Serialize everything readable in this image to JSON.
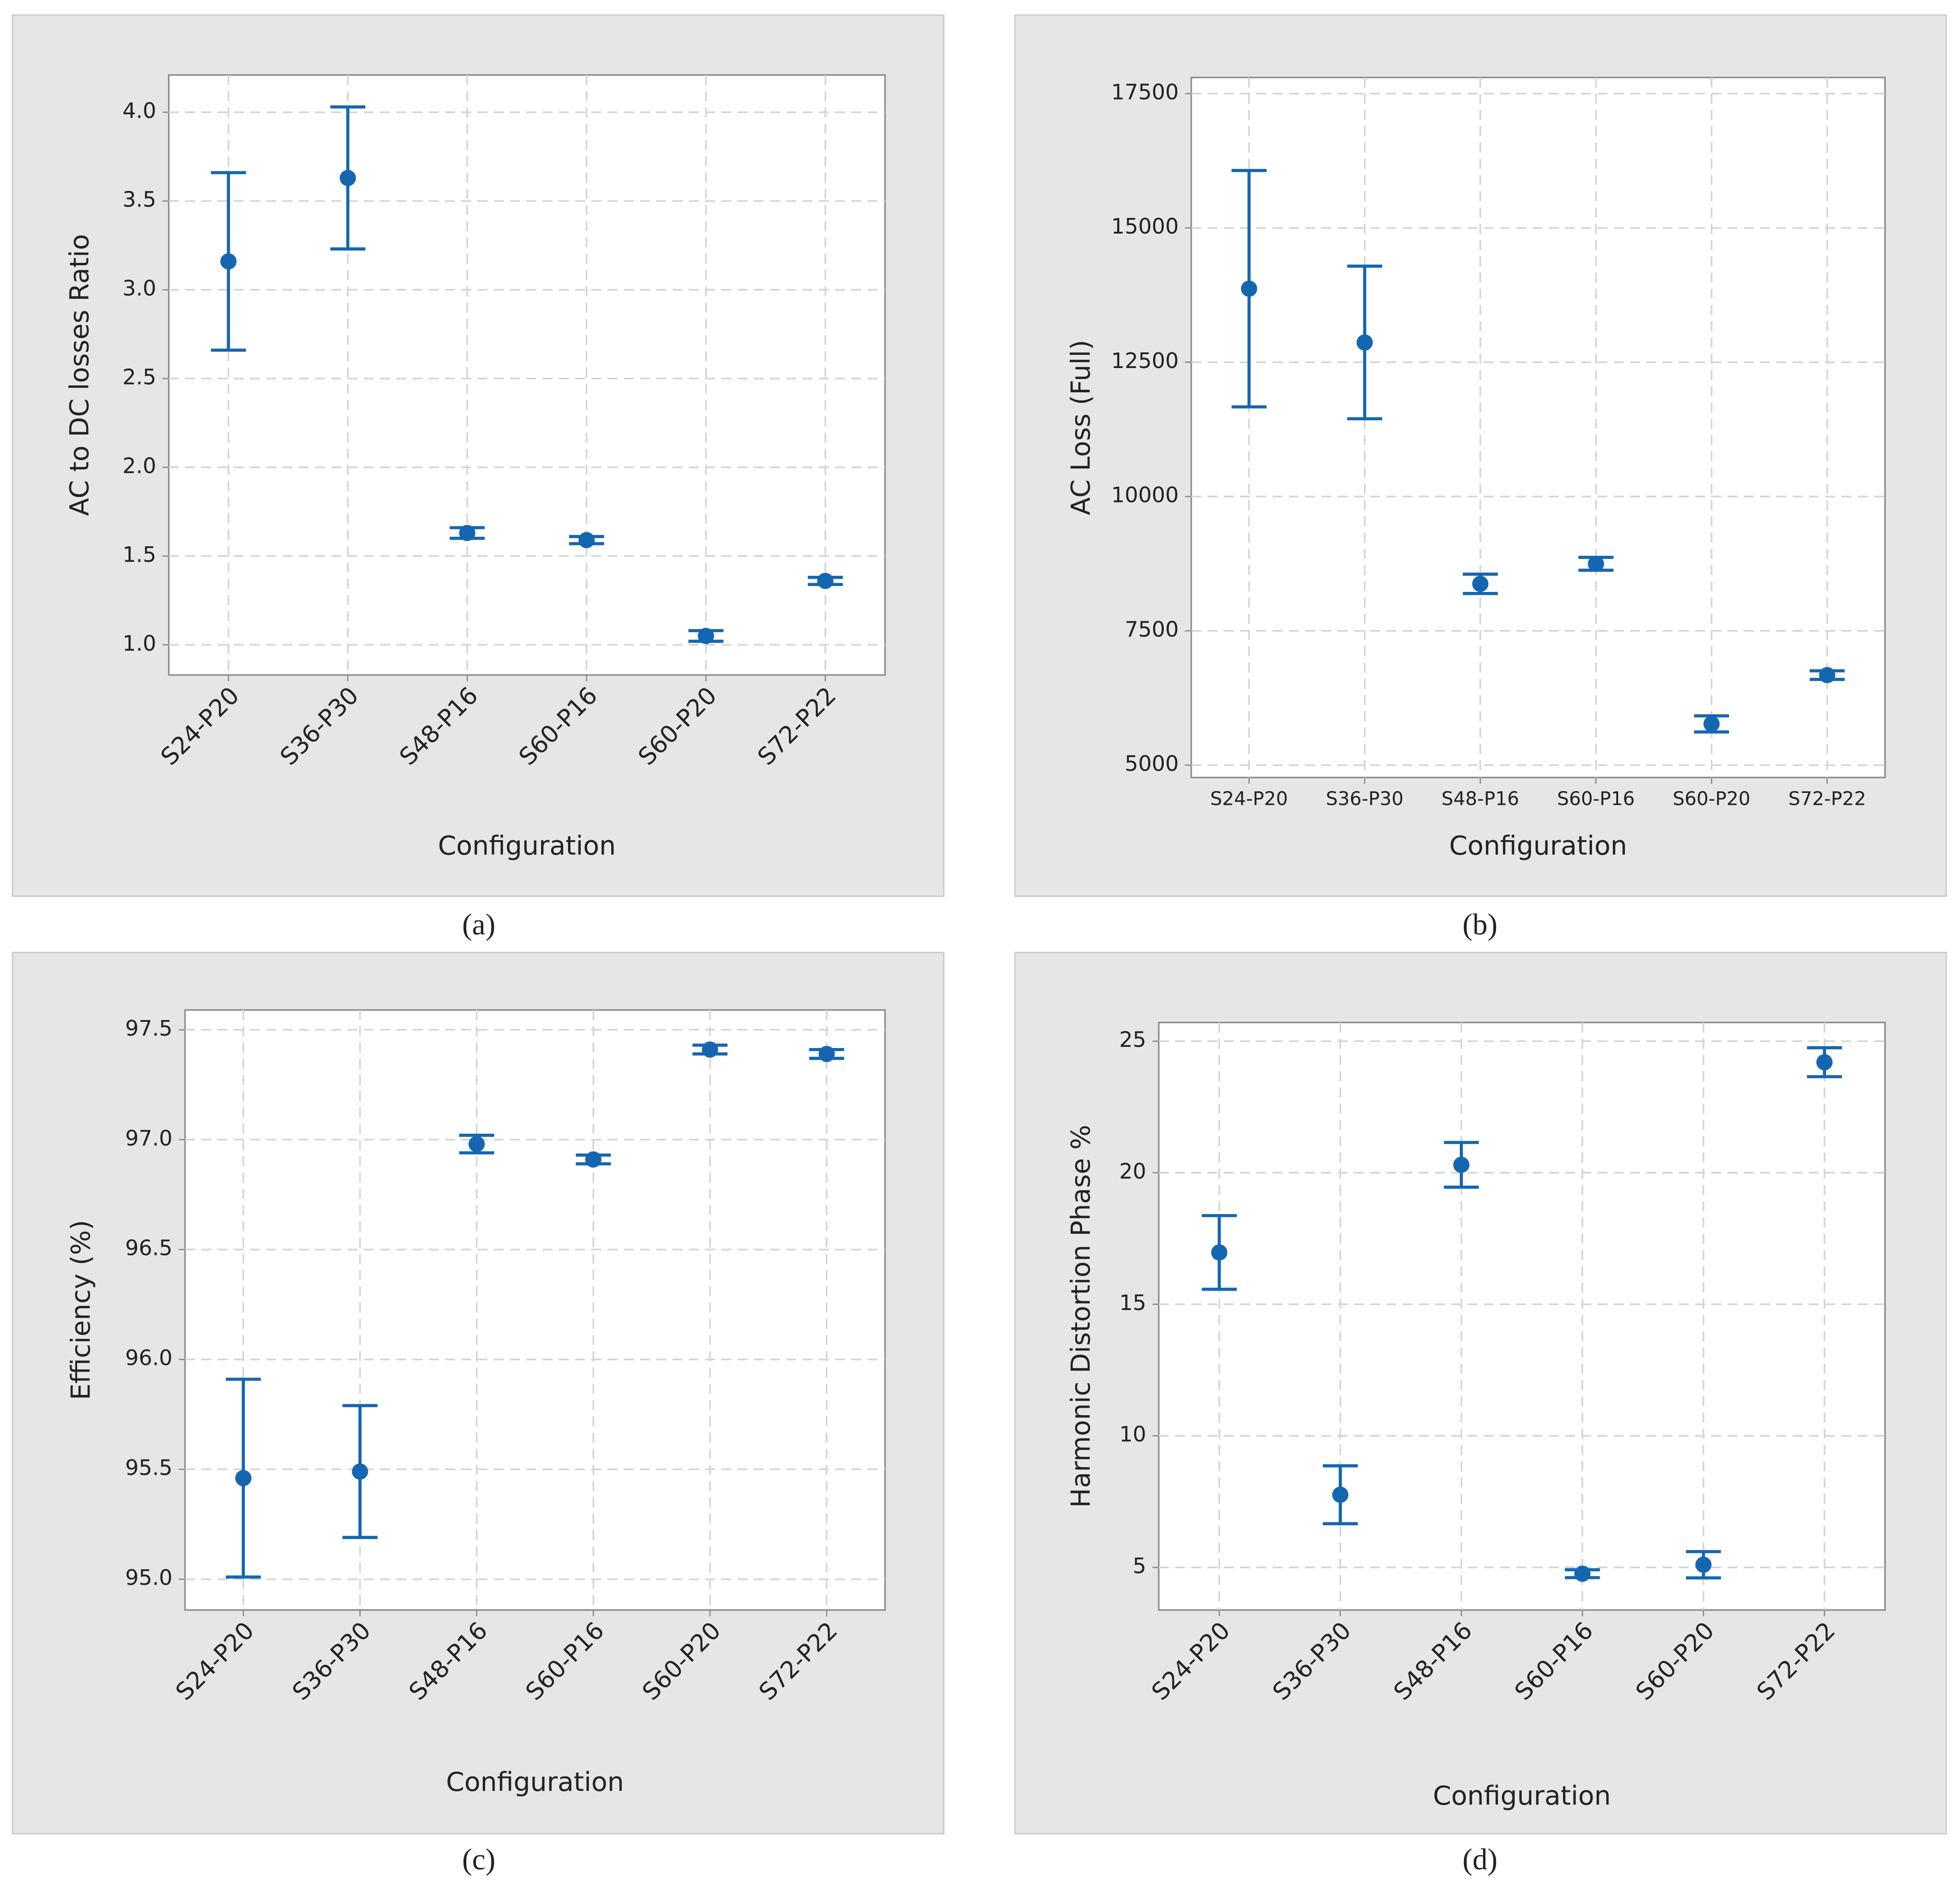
{
  "chart_data": [
    {
      "type": "errorbar",
      "caption": "(a)",
      "xlabel": "Configuration",
      "ylabel": "AC to DC losses Ratio",
      "categories": [
        "S24-P20",
        "S36-P30",
        "S48-P16",
        "S60-P16",
        "S60-P20",
        "S72-P22"
      ],
      "values": [
        3.16,
        3.63,
        1.63,
        1.59,
        1.05,
        1.36
      ],
      "errors": [
        0.5,
        0.4,
        0.03,
        0.02,
        0.03,
        0.02
      ],
      "color": "#1566b0",
      "ylim": [
        0.83,
        4.21
      ],
      "yticks": [
        {
          "value": 1,
          "label": "1.0"
        },
        1.5,
        {
          "value": 2,
          "label": "2.0"
        },
        2.5,
        {
          "value": 3,
          "label": "3.0"
        },
        3.5,
        {
          "value": 4,
          "label": "4.0"
        }
      ],
      "grid": true,
      "x_label_rotation": -45
    },
    {
      "type": "errorbar",
      "caption": "(b)",
      "xlabel": "Configuration",
      "ylabel": "AC Loss (Full)",
      "categories": [
        "S24-P20",
        "S36-P30",
        "S48-P16",
        "S60-P16",
        "S60-P20",
        "S72-P22"
      ],
      "values": [
        13869,
        12868,
        8375,
        8748,
        5768,
        6676
      ],
      "errors": [
        2200,
        1420,
        180,
        120,
        150,
        80
      ],
      "color": "#1566b0",
      "ylim": [
        4770,
        17800
      ],
      "yticks": [
        5000,
        7500,
        10000,
        12500,
        15000,
        17500
      ],
      "grid": true,
      "x_label_rotation": 0
    },
    {
      "type": "errorbar",
      "caption": "(c)",
      "xlabel": "Configuration",
      "ylabel": "Efficiency (%)",
      "categories": [
        "S24-P20",
        "S36-P30",
        "S48-P16",
        "S60-P16",
        "S60-P20",
        "S72-P22"
      ],
      "values": [
        95.46,
        95.49,
        96.98,
        96.91,
        97.41,
        97.39
      ],
      "errors": [
        0.45,
        0.3,
        0.04,
        0.02,
        0.02,
        0.02
      ],
      "color": "#1566b0",
      "ylim": [
        94.86,
        97.59
      ],
      "yticks": [
        {
          "value": 95,
          "label": "95.0"
        },
        95.5,
        {
          "value": 96,
          "label": "96.0"
        },
        96.5,
        {
          "value": 97,
          "label": "97.0"
        },
        97.5
      ],
      "grid": true,
      "x_label_rotation": -45
    },
    {
      "type": "errorbar",
      "caption": "(d)",
      "xlabel": "Configuration",
      "ylabel": "Harmonic Distortion Phase %",
      "categories": [
        "S24-P20",
        "S36-P30",
        "S48-P16",
        "S60-P16",
        "S60-P20",
        "S72-P22"
      ],
      "values": [
        16.97,
        7.76,
        20.3,
        4.76,
        5.1,
        24.2
      ],
      "errors": [
        1.4,
        1.1,
        0.85,
        0.15,
        0.5,
        0.55
      ],
      "color": "#1566b0",
      "ylim": [
        3.38,
        25.71
      ],
      "yticks": [
        5,
        10,
        15,
        20,
        25
      ],
      "grid": true,
      "x_label_rotation": -45
    }
  ]
}
